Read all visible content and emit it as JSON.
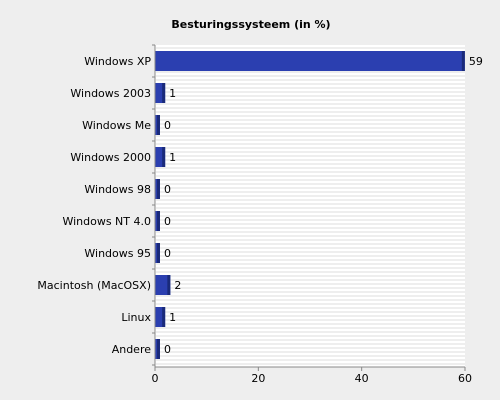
{
  "chart_data": {
    "type": "bar",
    "orientation": "horizontal",
    "title": "Besturingssysteem (in %)",
    "categories": [
      "Windows XP",
      "Windows 2003",
      "Windows Me",
      "Windows 2000",
      "Windows 98",
      "Windows NT 4.0",
      "Windows 95",
      "Macintosh (MacOSX)",
      "Linux",
      "Andere"
    ],
    "values": [
      59,
      1,
      0,
      1,
      0,
      0,
      0,
      2,
      1,
      0
    ],
    "xlim": [
      0,
      60
    ],
    "xticks": [
      0,
      20,
      40,
      60
    ],
    "grid": true,
    "bar_color": "#2b3fb0",
    "bar_edge_color": "#1a2a7a",
    "background_color": "#eeeeee",
    "plot_background": "#ffffff",
    "grid_color": "#dddddd"
  }
}
